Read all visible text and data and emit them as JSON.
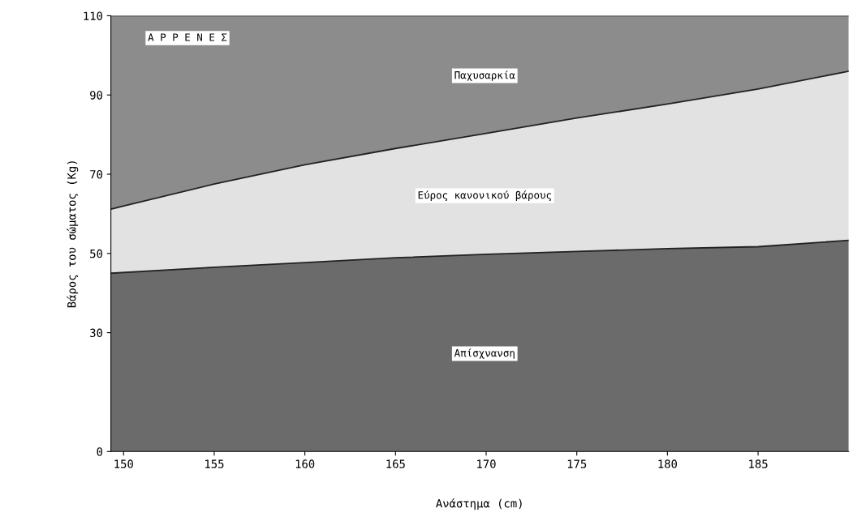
{
  "chart_data": {
    "type": "area",
    "xlabel": "Ανάστημα (cm)",
    "ylabel": "Βάρος του σώματος (Kg)",
    "annotations": [
      "Α Ρ Ρ Ε Ν Ε Σ"
    ],
    "x": [
      149.3,
      155,
      160,
      165,
      170,
      175,
      180,
      185,
      190
    ],
    "series": [
      {
        "name": "Απίσχνανση",
        "color": "#6b6b6b",
        "values": [
          45.0,
          46.5,
          47.7,
          48.9,
          49.8,
          50.5,
          51.2,
          51.7,
          53.3
        ]
      },
      {
        "name": "Εύρος κανονικού βάρους",
        "color": "#e2e2e2",
        "values": [
          61.2,
          67.5,
          72.4,
          76.5,
          80.3,
          84.2,
          87.7,
          91.5,
          96.0
        ]
      },
      {
        "name": "Παχυσαρκία",
        "color": "#8c8c8c",
        "values": [
          110,
          110,
          110,
          110,
          110,
          110,
          110,
          110,
          110
        ]
      }
    ],
    "xlim": [
      149.3,
      190
    ],
    "xticks": [
      150,
      155,
      160,
      165,
      170,
      175,
      180,
      185
    ],
    "ylim": [
      0,
      110
    ],
    "yticks": [
      0,
      30,
      50,
      70,
      90,
      110
    ],
    "grid": false,
    "legend": false
  }
}
